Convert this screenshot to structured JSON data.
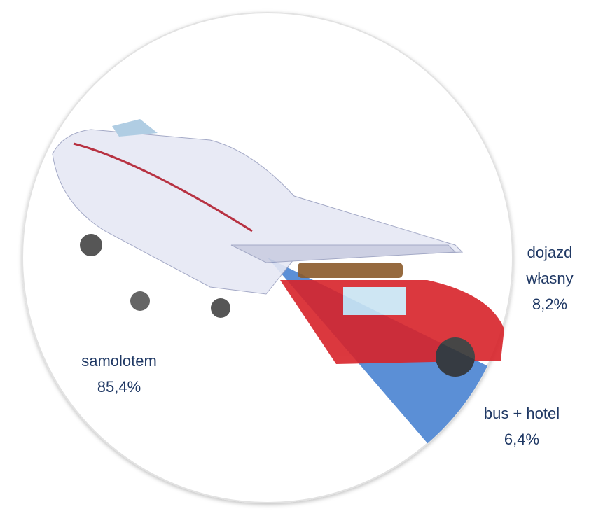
{
  "chart_data": {
    "type": "pie",
    "categories": [
      "dojazd własny",
      "bus + hotel",
      "samolotem"
    ],
    "values": [
      8.2,
      6.4,
      85.4
    ],
    "value_labels": [
      "8,2%",
      "6,4%",
      "85,4%"
    ],
    "colors": [
      "#ffffff",
      "#5b8fd6",
      "#ffffff"
    ]
  }
}
